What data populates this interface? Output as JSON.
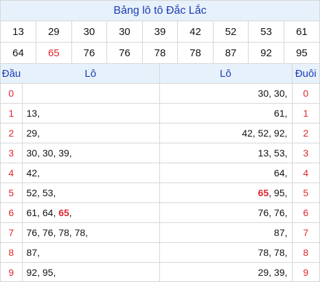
{
  "title": "Bảng lô tô Đắc Lắc",
  "numbers_row1": [
    "13",
    "29",
    "30",
    "30",
    "39",
    "42",
    "52",
    "53",
    "61"
  ],
  "numbers_row2": [
    "64",
    "65",
    "76",
    "76",
    "78",
    "78",
    "87",
    "92",
    "95"
  ],
  "highlight": "65",
  "colors": {
    "blue": "#1a3bb5",
    "red": "#e0262b",
    "header_bg": "#e7f1fb"
  },
  "headers": {
    "dau": "Đầu",
    "lo_left": "Lô",
    "lo_right": "Lô",
    "duoi": "Đuôi"
  },
  "rows": [
    {
      "d": "0",
      "left": [],
      "right": [
        "30",
        "30"
      ]
    },
    {
      "d": "1",
      "left": [
        "13"
      ],
      "right": [
        "61"
      ]
    },
    {
      "d": "2",
      "left": [
        "29"
      ],
      "right": [
        "42",
        "52",
        "92"
      ]
    },
    {
      "d": "3",
      "left": [
        "30",
        "30",
        "39"
      ],
      "right": [
        "13",
        "53"
      ]
    },
    {
      "d": "4",
      "left": [
        "42"
      ],
      "right": [
        "64"
      ]
    },
    {
      "d": "5",
      "left": [
        "52",
        "53"
      ],
      "right": [
        "65",
        "95"
      ]
    },
    {
      "d": "6",
      "left": [
        "61",
        "64",
        "65"
      ],
      "right": [
        "76",
        "76"
      ]
    },
    {
      "d": "7",
      "left": [
        "76",
        "76",
        "78",
        "78"
      ],
      "right": [
        "87"
      ]
    },
    {
      "d": "8",
      "left": [
        "87"
      ],
      "right": [
        "78",
        "78"
      ]
    },
    {
      "d": "9",
      "left": [
        "92",
        "95"
      ],
      "right": [
        "29",
        "39"
      ]
    }
  ]
}
